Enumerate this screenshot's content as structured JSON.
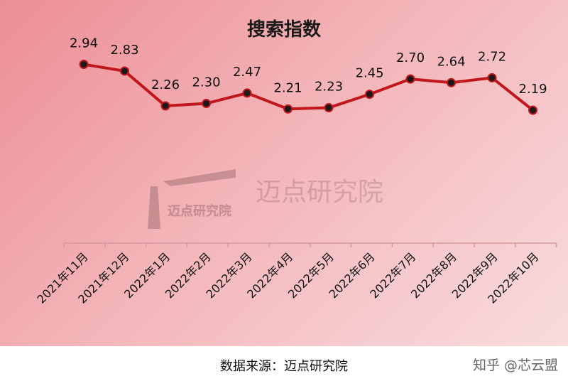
{
  "chart_data": {
    "type": "line",
    "title": "搜索指数",
    "categories": [
      "2021年11月",
      "2021年12月",
      "2022年1月",
      "2022年2月",
      "2022年3月",
      "2022年4月",
      "2022年5月",
      "2022年6月",
      "2022年7月",
      "2022年8月",
      "2022年9月",
      "2022年10月"
    ],
    "series": [
      {
        "values": [
          2.94,
          2.83,
          2.26,
          2.3,
          2.47,
          2.21,
          2.23,
          2.45,
          2.7,
          2.64,
          2.72,
          2.19
        ]
      }
    ],
    "xlabel": "",
    "ylabel": "",
    "grid": false,
    "colors": {
      "line": "#c0161c",
      "marker": "#1a1a1a",
      "background_start": "#ec8e95",
      "background_end": "#f9dcdd"
    }
  },
  "watermark": {
    "text": "迈点研究院"
  },
  "footer": {
    "source": "数据来源：迈点研究院",
    "credit": "知乎 @芯云盟"
  }
}
